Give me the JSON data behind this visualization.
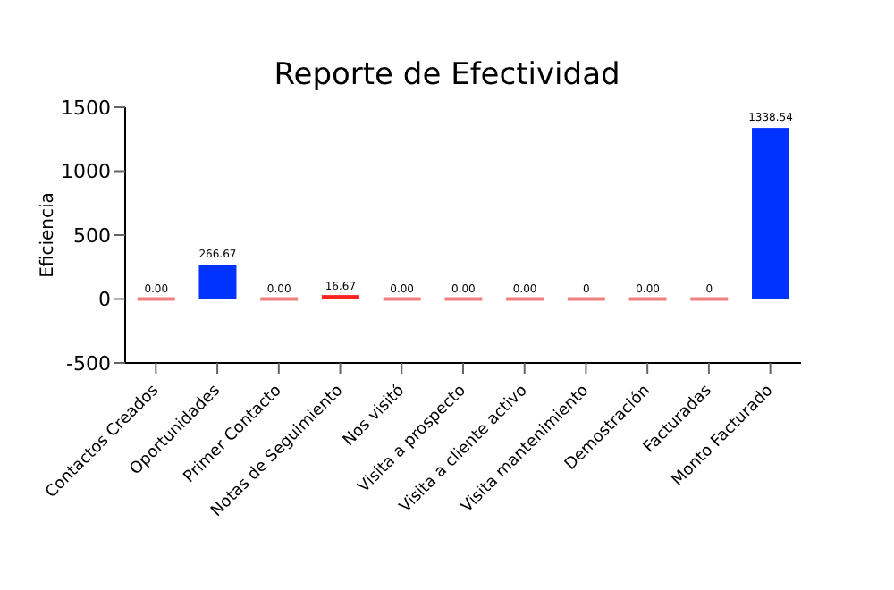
{
  "chart_data": {
    "type": "bar",
    "title": "Reporte de Efectividad",
    "ylabel": "Eficiencia",
    "categories": [
      "Contactos Creados",
      "Oportunidades",
      "Primer Contacto",
      "Notas de Seguimiento",
      "Nos visitó",
      "Visita a prospecto",
      "Visita a cliente activo",
      "Visita mantenimiento",
      "Demostración",
      "Facturadas",
      "Monto Facturado"
    ],
    "values": [
      0,
      266.67,
      0,
      16.67,
      0,
      0,
      0,
      0,
      0,
      0,
      1338.54
    ],
    "value_labels": [
      "0.00",
      "266.67",
      "0.00",
      "16.67",
      "0.00",
      "0.00",
      "0.00",
      "0",
      "0.00",
      "0",
      "1338.54"
    ],
    "colors": [
      "#f08080",
      "#0033ff",
      "#f08080",
      "#ff2020",
      "#f08080",
      "#f08080",
      "#f08080",
      "#f08080",
      "#f08080",
      "#f08080",
      "#0033ff"
    ],
    "ylim": [
      -500,
      1500
    ],
    "yticks": [
      -500,
      0,
      500,
      1000,
      1500
    ]
  }
}
